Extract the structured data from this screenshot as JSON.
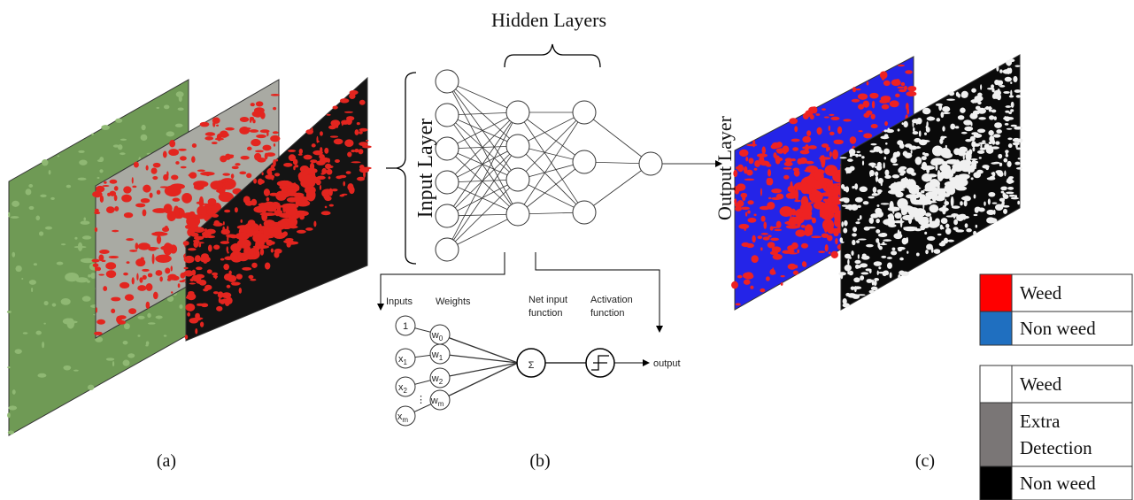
{
  "header": {
    "hidden_layers": "Hidden Layers",
    "input_layer": "Input Layer",
    "output_layer": "Output Layer"
  },
  "perceptron": {
    "inputs_label": "Inputs",
    "weights_label": "Weights",
    "net_input": [
      "Net input",
      "function"
    ],
    "activation": [
      "Activation",
      "function"
    ],
    "sum": "Σ",
    "output": "output",
    "ellipsis": "⋮",
    "inputs": [
      {
        "base": "1"
      },
      {
        "base": "x",
        "sub": "1"
      },
      {
        "base": "x",
        "sub": "2"
      },
      {
        "base": "x",
        "sub": "m"
      }
    ],
    "weights": [
      {
        "base": "w",
        "sub": "0"
      },
      {
        "base": "w",
        "sub": "1"
      },
      {
        "base": "w",
        "sub": "2"
      },
      {
        "base": "w",
        "sub": "m"
      }
    ]
  },
  "panels": [
    "(a)",
    "(b)",
    "(c)"
  ],
  "legend": [
    [
      [
        "Weed"
      ],
      [
        "Non weed"
      ]
    ],
    [
      [
        "Weed"
      ],
      [
        "Extra",
        "Detection"
      ],
      [
        "Non weed"
      ]
    ]
  ]
}
